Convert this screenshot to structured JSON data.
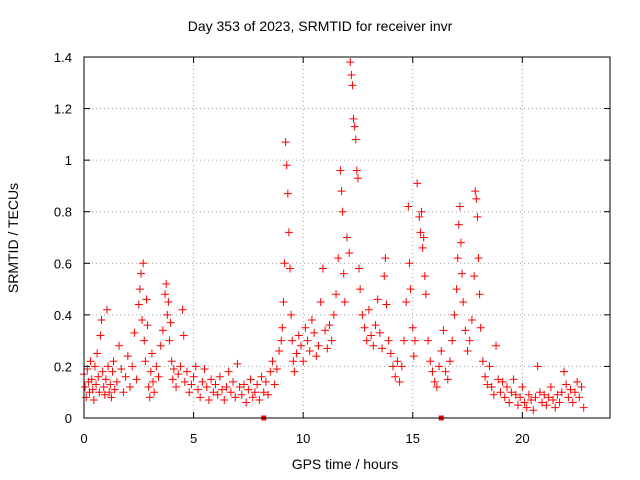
{
  "chart_data": {
    "type": "scatter",
    "title": "Day 353 of 2023, SRMTID for receiver invr",
    "xlabel": "GPS time / hours",
    "ylabel": "SRMTID / TECUs",
    "xlim": [
      0,
      24
    ],
    "ylim": [
      0,
      1.4
    ],
    "xticks": [
      0,
      5,
      10,
      15,
      20
    ],
    "xtick_labels": [
      "0",
      "5",
      "10",
      "15",
      "20"
    ],
    "yticks": [
      0,
      0.2,
      0.4,
      0.6,
      0.8,
      1,
      1.2,
      1.4
    ],
    "ytick_labels": [
      "0",
      "0.2",
      "0.4",
      "0.6",
      "0.8",
      "1",
      "1.2",
      "1.4"
    ],
    "grid": true,
    "marker": "+",
    "color": "#ff0000",
    "bottom_markers_x": [
      8.2,
      16.3
    ],
    "series": [
      {
        "name": "SRMTID",
        "points": [
          [
            0.0,
            0.17
          ],
          [
            0.05,
            0.12
          ],
          [
            0.1,
            0.08
          ],
          [
            0.15,
            0.19
          ],
          [
            0.2,
            0.14
          ],
          [
            0.25,
            0.1
          ],
          [
            0.3,
            0.22
          ],
          [
            0.35,
            0.15
          ],
          [
            0.4,
            0.11
          ],
          [
            0.45,
            0.07
          ],
          [
            0.5,
            0.2
          ],
          [
            0.55,
            0.13
          ],
          [
            0.6,
            0.25
          ],
          [
            0.65,
            0.16
          ],
          [
            0.7,
            0.1
          ],
          [
            0.75,
            0.32
          ],
          [
            0.8,
            0.38
          ],
          [
            0.85,
            0.18
          ],
          [
            0.9,
            0.12
          ],
          [
            0.95,
            0.09
          ],
          [
            1.0,
            0.15
          ],
          [
            1.05,
            0.42
          ],
          [
            1.1,
            0.2
          ],
          [
            1.15,
            0.1
          ],
          [
            1.2,
            0.13
          ],
          [
            1.25,
            0.08
          ],
          [
            1.3,
            0.18
          ],
          [
            1.35,
            0.22
          ],
          [
            1.4,
            0.11
          ],
          [
            1.5,
            0.14
          ],
          [
            1.6,
            0.28
          ],
          [
            1.7,
            0.19
          ],
          [
            1.8,
            0.1
          ],
          [
            1.9,
            0.16
          ],
          [
            2.0,
            0.24
          ],
          [
            2.1,
            0.12
          ],
          [
            2.2,
            0.2
          ],
          [
            2.3,
            0.33
          ],
          [
            2.4,
            0.15
          ],
          [
            2.5,
            0.44
          ],
          [
            2.55,
            0.5
          ],
          [
            2.6,
            0.56
          ],
          [
            2.65,
            0.38
          ],
          [
            2.7,
            0.6
          ],
          [
            2.75,
            0.3
          ],
          [
            2.8,
            0.22
          ],
          [
            2.85,
            0.46
          ],
          [
            2.9,
            0.36
          ],
          [
            2.95,
            0.12
          ],
          [
            3.0,
            0.08
          ],
          [
            3.05,
            0.18
          ],
          [
            3.1,
            0.25
          ],
          [
            3.15,
            0.14
          ],
          [
            3.2,
            0.1
          ],
          [
            3.3,
            0.2
          ],
          [
            3.4,
            0.16
          ],
          [
            3.5,
            0.28
          ],
          [
            3.6,
            0.34
          ],
          [
            3.7,
            0.48
          ],
          [
            3.75,
            0.52
          ],
          [
            3.8,
            0.4
          ],
          [
            3.85,
            0.45
          ],
          [
            3.9,
            0.3
          ],
          [
            3.95,
            0.37
          ],
          [
            4.0,
            0.22
          ],
          [
            4.05,
            0.15
          ],
          [
            4.1,
            0.19
          ],
          [
            4.2,
            0.12
          ],
          [
            4.3,
            0.17
          ],
          [
            4.4,
            0.2
          ],
          [
            4.5,
            0.42
          ],
          [
            4.55,
            0.32
          ],
          [
            4.6,
            0.14
          ],
          [
            4.7,
            0.18
          ],
          [
            4.8,
            0.1
          ],
          [
            4.9,
            0.13
          ],
          [
            5.0,
            0.16
          ],
          [
            5.1,
            0.2
          ],
          [
            5.2,
            0.11
          ],
          [
            5.3,
            0.08
          ],
          [
            5.4,
            0.14
          ],
          [
            5.5,
            0.19
          ],
          [
            5.6,
            0.12
          ],
          [
            5.7,
            0.07
          ],
          [
            5.8,
            0.15
          ],
          [
            5.9,
            0.1
          ],
          [
            6.0,
            0.13
          ],
          [
            6.1,
            0.09
          ],
          [
            6.2,
            0.16
          ],
          [
            6.3,
            0.11
          ],
          [
            6.4,
            0.07
          ],
          [
            6.5,
            0.12
          ],
          [
            6.6,
            0.18
          ],
          [
            6.7,
            0.1
          ],
          [
            6.8,
            0.14
          ],
          [
            6.9,
            0.08
          ],
          [
            7.0,
            0.21
          ],
          [
            7.1,
            0.12
          ],
          [
            7.2,
            0.09
          ],
          [
            7.3,
            0.13
          ],
          [
            7.4,
            0.06
          ],
          [
            7.5,
            0.11
          ],
          [
            7.6,
            0.15
          ],
          [
            7.7,
            0.08
          ],
          [
            7.8,
            0.1
          ],
          [
            7.9,
            0.13
          ],
          [
            8.0,
            0.07
          ],
          [
            8.1,
            0.16
          ],
          [
            8.2,
            0.1
          ],
          [
            8.3,
            0.14
          ],
          [
            8.4,
            0.09
          ],
          [
            8.5,
            0.18
          ],
          [
            8.6,
            0.22
          ],
          [
            8.7,
            0.13
          ],
          [
            8.8,
            0.19
          ],
          [
            8.9,
            0.26
          ],
          [
            9.0,
            0.3
          ],
          [
            9.05,
            0.35
          ],
          [
            9.1,
            0.45
          ],
          [
            9.15,
            0.6
          ],
          [
            9.2,
            1.07
          ],
          [
            9.25,
            0.98
          ],
          [
            9.3,
            0.87
          ],
          [
            9.35,
            0.72
          ],
          [
            9.4,
            0.58
          ],
          [
            9.45,
            0.4
          ],
          [
            9.5,
            0.3
          ],
          [
            9.55,
            0.22
          ],
          [
            9.6,
            0.18
          ],
          [
            9.7,
            0.25
          ],
          [
            9.8,
            0.32
          ],
          [
            9.9,
            0.28
          ],
          [
            10.0,
            0.22
          ],
          [
            10.1,
            0.35
          ],
          [
            10.2,
            0.3
          ],
          [
            10.3,
            0.26
          ],
          [
            10.4,
            0.38
          ],
          [
            10.5,
            0.33
          ],
          [
            10.6,
            0.24
          ],
          [
            10.7,
            0.28
          ],
          [
            10.8,
            0.45
          ],
          [
            10.9,
            0.58
          ],
          [
            11.0,
            0.34
          ],
          [
            11.1,
            0.27
          ],
          [
            11.2,
            0.36
          ],
          [
            11.3,
            0.3
          ],
          [
            11.4,
            0.4
          ],
          [
            11.5,
            0.48
          ],
          [
            11.6,
            0.62
          ],
          [
            11.7,
            0.96
          ],
          [
            11.75,
            0.88
          ],
          [
            11.8,
            0.8
          ],
          [
            11.85,
            0.56
          ],
          [
            11.9,
            0.45
          ],
          [
            12.0,
            0.7
          ],
          [
            12.1,
            0.64
          ],
          [
            12.15,
            1.38
          ],
          [
            12.2,
            1.33
          ],
          [
            12.25,
            1.29
          ],
          [
            12.3,
            1.16
          ],
          [
            12.35,
            1.13
          ],
          [
            12.4,
            1.08
          ],
          [
            12.45,
            0.96
          ],
          [
            12.5,
            0.93
          ],
          [
            12.55,
            0.58
          ],
          [
            12.6,
            0.5
          ],
          [
            12.7,
            0.4
          ],
          [
            12.8,
            0.35
          ],
          [
            12.9,
            0.3
          ],
          [
            13.0,
            0.42
          ],
          [
            13.1,
            0.32
          ],
          [
            13.2,
            0.28
          ],
          [
            13.3,
            0.36
          ],
          [
            13.4,
            0.46
          ],
          [
            13.5,
            0.33
          ],
          [
            13.6,
            0.27
          ],
          [
            13.7,
            0.55
          ],
          [
            13.75,
            0.62
          ],
          [
            13.8,
            0.44
          ],
          [
            13.9,
            0.3
          ],
          [
            14.0,
            0.25
          ],
          [
            14.1,
            0.2
          ],
          [
            14.2,
            0.16
          ],
          [
            14.3,
            0.22
          ],
          [
            14.4,
            0.14
          ],
          [
            14.5,
            0.2
          ],
          [
            14.6,
            0.3
          ],
          [
            14.7,
            0.45
          ],
          [
            14.8,
            0.82
          ],
          [
            14.85,
            0.6
          ],
          [
            14.9,
            0.5
          ],
          [
            15.0,
            0.35
          ],
          [
            15.05,
            0.24
          ],
          [
            15.1,
            0.3
          ],
          [
            15.2,
            0.91
          ],
          [
            15.3,
            0.78
          ],
          [
            15.35,
            0.72
          ],
          [
            15.4,
            0.8
          ],
          [
            15.45,
            0.66
          ],
          [
            15.5,
            0.7
          ],
          [
            15.55,
            0.55
          ],
          [
            15.6,
            0.48
          ],
          [
            15.7,
            0.3
          ],
          [
            15.8,
            0.22
          ],
          [
            15.9,
            0.18
          ],
          [
            16.0,
            0.14
          ],
          [
            16.1,
            0.12
          ],
          [
            16.2,
            0.2
          ],
          [
            16.3,
            0.26
          ],
          [
            16.4,
            0.34
          ],
          [
            16.5,
            0.18
          ],
          [
            16.6,
            0.15
          ],
          [
            16.7,
            0.22
          ],
          [
            16.8,
            0.3
          ],
          [
            16.9,
            0.4
          ],
          [
            17.0,
            0.5
          ],
          [
            17.05,
            0.62
          ],
          [
            17.1,
            0.75
          ],
          [
            17.15,
            0.82
          ],
          [
            17.2,
            0.68
          ],
          [
            17.25,
            0.56
          ],
          [
            17.3,
            0.45
          ],
          [
            17.4,
            0.34
          ],
          [
            17.5,
            0.26
          ],
          [
            17.6,
            0.3
          ],
          [
            17.7,
            0.38
          ],
          [
            17.8,
            0.55
          ],
          [
            17.85,
            0.88
          ],
          [
            17.9,
            0.85
          ],
          [
            17.95,
            0.78
          ],
          [
            18.0,
            0.62
          ],
          [
            18.05,
            0.48
          ],
          [
            18.1,
            0.35
          ],
          [
            18.2,
            0.22
          ],
          [
            18.3,
            0.16
          ],
          [
            18.4,
            0.13
          ],
          [
            18.5,
            0.2
          ],
          [
            18.6,
            0.12
          ],
          [
            18.7,
            0.09
          ],
          [
            18.8,
            0.28
          ],
          [
            18.9,
            0.15
          ],
          [
            19.0,
            0.1
          ],
          [
            19.1,
            0.14
          ],
          [
            19.2,
            0.08
          ],
          [
            19.3,
            0.12
          ],
          [
            19.4,
            0.06
          ],
          [
            19.5,
            0.1
          ],
          [
            19.6,
            0.15
          ],
          [
            19.7,
            0.09
          ],
          [
            19.8,
            0.05
          ],
          [
            19.9,
            0.08
          ],
          [
            20.0,
            0.12
          ],
          [
            20.1,
            0.06
          ],
          [
            20.2,
            0.04
          ],
          [
            20.3,
            0.09
          ],
          [
            20.4,
            0.07
          ],
          [
            20.5,
            0.03
          ],
          [
            20.6,
            0.08
          ],
          [
            20.7,
            0.2
          ],
          [
            20.8,
            0.1
          ],
          [
            20.9,
            0.06
          ],
          [
            21.0,
            0.09
          ],
          [
            21.1,
            0.05
          ],
          [
            21.2,
            0.08
          ],
          [
            21.3,
            0.12
          ],
          [
            21.4,
            0.07
          ],
          [
            21.5,
            0.04
          ],
          [
            21.6,
            0.09
          ],
          [
            21.7,
            0.06
          ],
          [
            21.8,
            0.1
          ],
          [
            21.9,
            0.18
          ],
          [
            22.0,
            0.13
          ],
          [
            22.1,
            0.08
          ],
          [
            22.2,
            0.11
          ],
          [
            22.3,
            0.06
          ],
          [
            22.4,
            0.1
          ],
          [
            22.5,
            0.14
          ],
          [
            22.6,
            0.08
          ],
          [
            22.7,
            0.12
          ],
          [
            22.8,
            0.04
          ]
        ]
      }
    ]
  }
}
